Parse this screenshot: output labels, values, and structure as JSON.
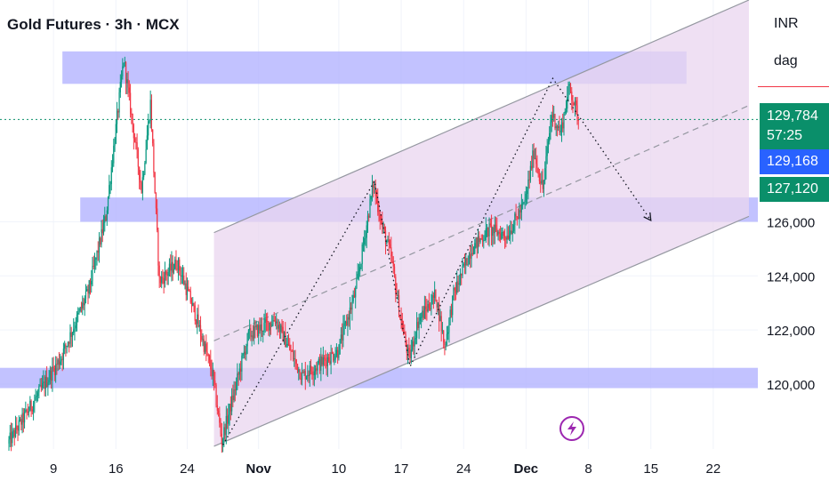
{
  "header": {
    "title": "Gold Futures · 3h · MCX"
  },
  "scale_panel": {
    "currency": "INR",
    "unit": "dag"
  },
  "price_badges": {
    "last_price": "129,784",
    "countdown": "57:25",
    "blue_level": "129,168",
    "green_level": "127,120"
  },
  "colors": {
    "up": "#089981",
    "down": "#f23645",
    "zone": "#b3b3ff",
    "channel_fill": "#e9d6ef",
    "last_price_line": "#0a8f6a",
    "event_icon": "#9c27b0"
  },
  "event_icon": "lightning-icon",
  "chart_data": {
    "type": "candlestick",
    "title": "Gold Futures · 3h · MCX",
    "xlabel": "",
    "ylabel": "",
    "x_ticks": [
      {
        "label": "9",
        "date": "2025-10-09",
        "bold": false
      },
      {
        "label": "16",
        "date": "2025-10-16",
        "bold": false
      },
      {
        "label": "24",
        "date": "2025-10-24",
        "bold": false
      },
      {
        "label": "Nov",
        "date": "2025-11-01",
        "bold": true
      },
      {
        "label": "10",
        "date": "2025-11-10",
        "bold": false
      },
      {
        "label": "17",
        "date": "2025-11-17",
        "bold": false
      },
      {
        "label": "24",
        "date": "2025-11-24",
        "bold": false
      },
      {
        "label": "Dec",
        "date": "2025-12-01",
        "bold": true
      },
      {
        "label": "8",
        "date": "2025-12-08",
        "bold": false
      },
      {
        "label": "15",
        "date": "2025-12-15",
        "bold": false
      },
      {
        "label": "22",
        "date": "2025-12-22",
        "bold": false
      }
    ],
    "y_ticks": [
      {
        "value": 120000,
        "label": "120,000"
      },
      {
        "value": 122000,
        "label": "122,000"
      },
      {
        "value": 124000,
        "label": "124,000"
      },
      {
        "value": 126000,
        "label": "126,000"
      }
    ],
    "xlim": [
      "2025-10-03",
      "2025-12-27"
    ],
    "ylim": [
      117600,
      134200
    ],
    "last_price": 129784,
    "price_lines": [
      {
        "value": 129784,
        "style": "dotted",
        "color": "#0a8f6a"
      }
    ],
    "zones": [
      {
        "x1": "2025-10-10",
        "x2": "2025-12-19",
        "y1": 131100,
        "y2": 132300
      },
      {
        "x1": "2025-10-12",
        "x2": "2025-12-27",
        "y1": 126000,
        "y2": 126900
      },
      {
        "x1": "2025-10-03",
        "x2": "2025-12-27",
        "y1": 119850,
        "y2": 120600
      }
    ],
    "channel": {
      "upper": [
        [
          "2025-10-27",
          125600
        ],
        [
          "2025-12-26",
          134200
        ]
      ],
      "lower": [
        [
          "2025-10-27",
          117700
        ],
        [
          "2025-12-26",
          126200
        ]
      ],
      "mid": [
        [
          "2025-10-27",
          121600
        ],
        [
          "2025-12-26",
          130300
        ]
      ]
    },
    "path_projection": [
      [
        "2025-10-28",
        117750
      ],
      [
        "2025-11-14",
        127500
      ],
      [
        "2025-11-18",
        120650
      ],
      [
        "2025-12-04",
        131300
      ],
      [
        "2025-12-15",
        126050
      ]
    ],
    "anchors": [
      [
        "2025-10-04",
        117800
      ],
      [
        "2025-10-10",
        121000
      ],
      [
        "2025-10-13",
        123400
      ],
      [
        "2025-10-15",
        126200
      ],
      [
        "2025-10-17",
        132000
      ],
      [
        "2025-10-19",
        127200
      ],
      [
        "2025-10-20",
        130400
      ],
      [
        "2025-10-21",
        123800
      ],
      [
        "2025-10-23",
        124500
      ],
      [
        "2025-10-25",
        122600
      ],
      [
        "2025-10-27",
        120300
      ],
      [
        "2025-10-28",
        117900
      ],
      [
        "2025-10-31",
        121800
      ],
      [
        "2025-11-03",
        122400
      ],
      [
        "2025-11-06",
        120300
      ],
      [
        "2025-11-10",
        121200
      ],
      [
        "2025-11-12",
        123400
      ],
      [
        "2025-11-14",
        127400
      ],
      [
        "2025-11-15",
        125800
      ],
      [
        "2025-11-16",
        124700
      ],
      [
        "2025-11-17",
        122500
      ],
      [
        "2025-11-18",
        120900
      ],
      [
        "2025-11-19",
        122300
      ],
      [
        "2025-11-21",
        123300
      ],
      [
        "2025-11-22",
        121400
      ],
      [
        "2025-11-23",
        123300
      ],
      [
        "2025-11-25",
        125000
      ],
      [
        "2025-11-27",
        125700
      ],
      [
        "2025-11-29",
        125500
      ],
      [
        "2025-12-01",
        126700
      ],
      [
        "2025-12-02",
        128600
      ],
      [
        "2025-12-03",
        127200
      ],
      [
        "2025-12-04",
        130000
      ],
      [
        "2025-12-05",
        129300
      ],
      [
        "2025-12-06",
        131000
      ],
      [
        "2025-12-07",
        129800
      ]
    ]
  }
}
